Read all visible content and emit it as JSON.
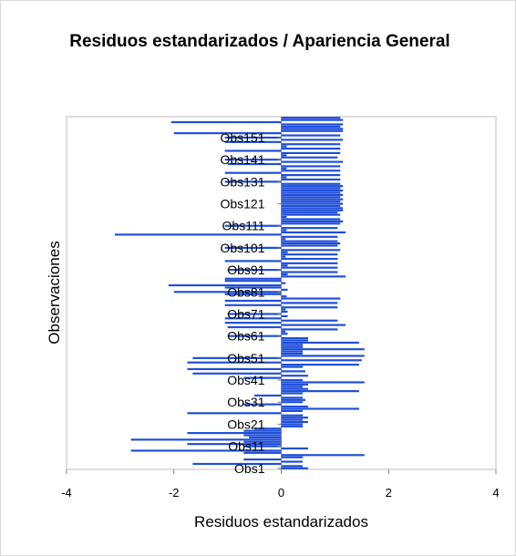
{
  "chart_data": {
    "type": "bar",
    "orientation": "horizontal",
    "title": "Residuos estandarizados / Apariencia General",
    "xlabel": "Residuos estandarizados",
    "ylabel": "Observaciones",
    "xlim": [
      -4,
      4
    ],
    "xticks": [
      "-4",
      "-2",
      "0",
      "2",
      "4"
    ],
    "grid": false,
    "legend": "none",
    "bar_color": "#1f4ed8",
    "category_tick_labels": [
      "Obs1",
      "Obs11",
      "Obs21",
      "Obs31",
      "Obs41",
      "Obs51",
      "Obs61",
      "Obs71",
      "Obs81",
      "Obs91",
      "Obs101",
      "Obs111",
      "Obs121",
      "Obs131",
      "Obs141",
      "Obs151"
    ],
    "n_observations": 160,
    "values": [
      0.5,
      0.4,
      -1.65,
      0.4,
      -0.7,
      0.4,
      1.55,
      -0.7,
      -2.8,
      0.5,
      -0.7,
      -1.75,
      -0.7,
      -2.8,
      -0.6,
      -0.7,
      -1.75,
      -0.7,
      -0.5,
      0.4,
      0.4,
      0.5,
      0.4,
      0.5,
      0.4,
      -1.75,
      0.4,
      1.45,
      0.5,
      -0.7,
      0.4,
      0.45,
      0.4,
      -0.5,
      0.4,
      1.45,
      0.5,
      0.4,
      0.5,
      1.55,
      0.4,
      -0.7,
      0.5,
      -1.65,
      0.45,
      -1.75,
      0.4,
      1.45,
      -1.75,
      1.5,
      -1.65,
      1.55,
      0.4,
      0.4,
      1.55,
      0.4,
      0.4,
      1.45,
      0.5,
      0.5,
      -1.0,
      0.12,
      0.08,
      1.05,
      -1.0,
      1.2,
      -1.05,
      1.05,
      -1.05,
      0.12,
      -1.0,
      0.12,
      0.08,
      1.05,
      -1.05,
      1.05,
      -1.05,
      1.1,
      0.1,
      -1.05,
      -2.0,
      0.12,
      -1.05,
      -2.1,
      0.08,
      -1.05,
      -1.05,
      1.2,
      0.12,
      1.05,
      -1.0,
      1.05,
      0.12,
      1.05,
      -1.05,
      1.05,
      0.08,
      1.05,
      0.12,
      1.1,
      -1.05,
      1.05,
      1.1,
      1.05,
      0.08,
      1.05,
      -3.1,
      1.2,
      0.1,
      1.05,
      -1.05,
      1.1,
      1.15,
      1.1,
      0.1,
      1.1,
      1.05,
      1.15,
      1.15,
      1.1,
      1.15,
      1.1,
      1.15,
      1.1,
      1.15,
      1.1,
      1.15,
      1.1,
      1.15,
      1.1,
      -1.05,
      1.1,
      0.1,
      1.1,
      -1.05,
      1.1,
      0.1,
      1.1,
      -1.0,
      1.15,
      -1.05,
      1.05,
      0.1,
      1.1,
      -1.05,
      1.1,
      0.1,
      1.1,
      -1.05,
      1.15,
      -1.05,
      1.1,
      -2.0,
      1.15,
      1.15,
      1.1,
      1.15,
      -2.05,
      1.15,
      1.1
    ]
  }
}
